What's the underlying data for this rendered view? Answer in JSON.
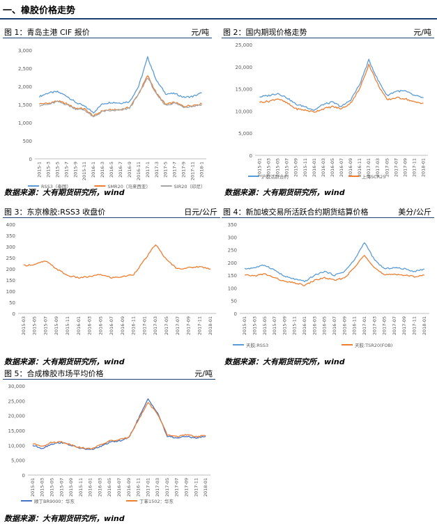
{
  "section_title": "一、橡胶价格走势",
  "source_note": "数据来源：大有期货研究所，wind",
  "colors": {
    "blue": "#5b9bd5",
    "orange": "#ed7d31",
    "gray": "#a5a5a5",
    "navy": "#4472c4",
    "axis": "#bfbfbf",
    "text": "#595959"
  },
  "chart_data": [
    {
      "type": "line",
      "title": "图 1：青岛主港 CIF 报价",
      "unit": "元/吨",
      "x": [
        "2015-1",
        "2015-3",
        "2015-5",
        "2015-7",
        "2015-9",
        "2015-11",
        "2016-1",
        "2016-3",
        "2016-5",
        "2016-7",
        "2016-9",
        "2016-11",
        "2017-1",
        "2017-3",
        "2017-5",
        "2017-7",
        "2017-9",
        "2017-11",
        "2018-1"
      ],
      "ylim": [
        0,
        3000
      ],
      "yticks": [
        "0",
        "500",
        "1,000",
        "1,500",
        "2,000",
        "2,500",
        "3,000"
      ],
      "series": [
        {
          "name": "RSS3（泰国）",
          "color": "#5b9bd5",
          "values": [
            1720,
            1820,
            1850,
            1740,
            1560,
            1450,
            1280,
            1520,
            1560,
            1540,
            1580,
            2000,
            2800,
            2150,
            1800,
            1800,
            1700,
            1720,
            1820
          ]
        },
        {
          "name": "SMR20（马来西亚）",
          "color": "#ed7d31",
          "values": [
            1520,
            1530,
            1600,
            1520,
            1400,
            1380,
            1180,
            1330,
            1350,
            1360,
            1420,
            1800,
            2300,
            1800,
            1500,
            1560,
            1450,
            1480,
            1520
          ]
        },
        {
          "name": "SIR20（印尼）",
          "color": "#a5a5a5",
          "values": [
            1480,
            1500,
            1580,
            1500,
            1380,
            1350,
            1150,
            1310,
            1330,
            1340,
            1400,
            1780,
            2250,
            1760,
            1480,
            1540,
            1430,
            1450,
            1500
          ]
        }
      ]
    },
    {
      "type": "line",
      "title": "图 2：国内期现价格走势",
      "unit": "元/吨",
      "x": [
        "2015-01",
        "2015-03",
        "2015-05",
        "2015-07",
        "2015-09",
        "2015-11",
        "2016-01",
        "2016-03",
        "2016-05",
        "2016-07",
        "2016-09",
        "2016-11",
        "2017-01",
        "2017-03",
        "2017-05",
        "2017-07",
        "2017-09",
        "2017-11",
        "2018-01"
      ],
      "ylim": [
        0,
        25000
      ],
      "yticks": [
        "0",
        "5,000",
        "10,000",
        "15,000",
        "20,000",
        "25,000"
      ],
      "series": [
        {
          "name": "沪胶活跃合约",
          "color": "#5b9bd5",
          "values": [
            13200,
            13500,
            14000,
            13000,
            11500,
            11000,
            10200,
            11500,
            12000,
            11000,
            12500,
            16000,
            21500,
            17000,
            13500,
            14500,
            14500,
            13500,
            13000
          ]
        },
        {
          "name": "上海SCR25",
          "color": "#ed7d31",
          "values": [
            12000,
            12200,
            12800,
            11800,
            10500,
            10200,
            9800,
            10500,
            11000,
            10500,
            11800,
            15000,
            20500,
            16000,
            12500,
            13000,
            12800,
            12000,
            11800
          ]
        }
      ]
    },
    {
      "type": "line",
      "title": "图 3：东京橡胶:RSS3 收盘价",
      "unit": "日元/公斤",
      "x": [
        "2015-03",
        "2015-05",
        "2015-07",
        "2015-09",
        "2015-11",
        "2016-01",
        "2016-03",
        "2016-05",
        "2016-07",
        "2016-09",
        "2016-11",
        "2017-01",
        "2017-03",
        "2017-05",
        "2017-07",
        "2017-09",
        "2017-11",
        "2018-01"
      ],
      "ylim": [
        0,
        400
      ],
      "yticks": [
        "0",
        "50",
        "100",
        "150",
        "200",
        "250",
        "300",
        "350",
        "400"
      ],
      "series": [
        {
          "name": "RSS3",
          "color": "#ed7d31",
          "values": [
            215,
            220,
            235,
            200,
            170,
            160,
            165,
            175,
            160,
            165,
            175,
            240,
            310,
            240,
            200,
            205,
            210,
            200
          ]
        }
      ]
    },
    {
      "type": "line",
      "title": "图 4：新加坡交易所活跃合约期货结算价格",
      "unit": "美分/公斤",
      "x": [
        "2015-01",
        "2015-03",
        "2015-05",
        "2015-07",
        "2015-09",
        "2015-11",
        "2016-01",
        "2016-03",
        "2016-05",
        "2016-07",
        "2016-09",
        "2016-11",
        "2017-01",
        "2017-03",
        "2017-05",
        "2017-07",
        "2017-09",
        "2017-11",
        "2018-01"
      ],
      "ylim": [
        0,
        350
      ],
      "yticks": [
        "0",
        "50",
        "100",
        "150",
        "200",
        "250",
        "300",
        "350"
      ],
      "series": [
        {
          "name": "天胶:RSS3",
          "color": "#5b9bd5",
          "values": [
            175,
            180,
            190,
            170,
            145,
            135,
            125,
            150,
            165,
            150,
            165,
            210,
            280,
            210,
            175,
            180,
            175,
            165,
            175
          ]
        },
        {
          "name": "天胶:TSR20(FOB)",
          "color": "#ed7d31",
          "values": [
            150,
            148,
            155,
            140,
            125,
            120,
            110,
            130,
            140,
            130,
            140,
            180,
            230,
            180,
            150,
            155,
            150,
            145,
            150
          ]
        }
      ]
    },
    {
      "type": "line",
      "title": "图 5：合成橡胶市场平均价格",
      "unit": "元/吨",
      "x": [
        "2015-01",
        "2015-03",
        "2015-05",
        "2015-07",
        "2015-09",
        "2015-11",
        "2016-01",
        "2016-03",
        "2016-05",
        "2016-07",
        "2016-09",
        "2016-11",
        "2017-01",
        "2017-03",
        "2017-05",
        "2017-07",
        "2017-09",
        "2017-11",
        "2018-01"
      ],
      "ylim": [
        0,
        30000
      ],
      "yticks": [
        "0",
        "5,000",
        "10,000",
        "15,000",
        "20,000",
        "25,000",
        "30,000"
      ],
      "series": [
        {
          "name": "顺丁BR9000：华东",
          "color": "#4472c4",
          "values": [
            10000,
            9000,
            10500,
            11000,
            10000,
            9000,
            8500,
            9500,
            11000,
            11500,
            12500,
            19000,
            25500,
            21000,
            13000,
            12500,
            13000,
            12500,
            13000
          ]
        },
        {
          "name": "丁苯1502：华东",
          "color": "#ed7d31",
          "values": [
            10500,
            9800,
            11000,
            11200,
            10200,
            9200,
            8800,
            10000,
            11500,
            11800,
            12800,
            18500,
            24500,
            20500,
            13500,
            13000,
            13500,
            13000,
            13200
          ]
        }
      ]
    }
  ]
}
